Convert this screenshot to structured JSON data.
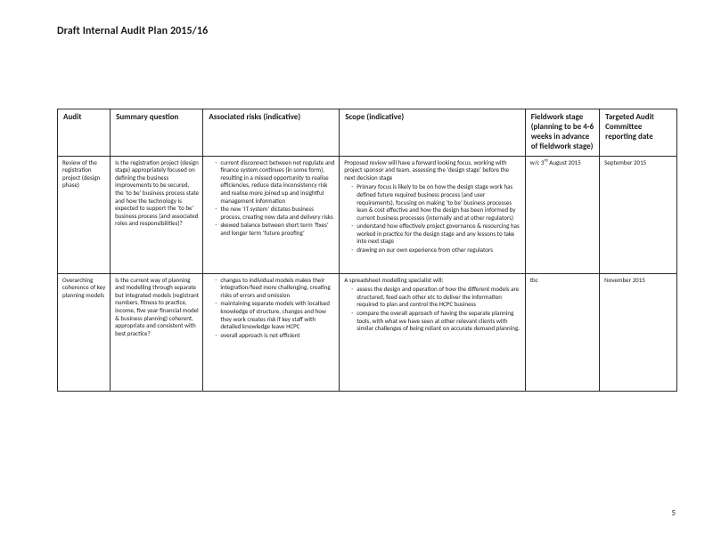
{
  "doc_title": "Draft Internal Audit Plan 2015/16",
  "page_number": "5",
  "columns": {
    "audit": "Audit",
    "summary": "Summary question",
    "risks": "Associated risks (indicative)",
    "scope": "Scope (indicative)",
    "fieldwork": "Fieldwork stage (planning to be 4-6 weeks in advance of fieldwork stage)",
    "target": "Targeted Audit Committee reporting date"
  },
  "rows": [
    {
      "audit": "Review of the registration project  (design phase)",
      "summary": "Is the registration project (design stage) appropriately focused on defining the business improvements to be secured, the ‘to be’ business process state and how the technology is expected to support the ‘to be’ business process (and associated roles and responsibilities)?",
      "risks": [
        "current disconnect between net regulate and finance system continues (in some form), resulting in a missed opportunity to realise efficiencies, reduce data inconsistency risk and realise more joined up and insightful management information",
        "the new ‘IT system’ dictates business process, creating new data and delivery risks",
        "skewed balance between short term ‘fixes’ and longer term ‘future proofing’"
      ],
      "scope_lead": "Proposed review will have a forward looking focus, working with project sponsor and team, assessing the ‘design stage’ before the next decision stage",
      "scope_items": [
        "Primary focus is likely to be on how the design stage work has defined future required business process (and user requirements), focusing on making ‘to be’ business processes lean & cost effective and how the design has been informed by current business processes (internally and at other regulators)",
        "understand how effectively project governance & resourcing has worked in practice for the design stage and any lessons to take into next stage",
        "drawing on our own experience from other regulators"
      ],
      "fieldwork_pre": "w/c 3",
      "fieldwork_sup": "rd",
      "fieldwork_post": " August 2015",
      "target": "September 2015"
    },
    {
      "audit": "Overarching coherence of key planning models",
      "summary": "Is the current way of planning and modelling through separate but integrated models (registrant numbers, fitness to practice, income, five year financial model & business planning) coherent, appropriate and consistent with best practice?",
      "risks": [
        "changes to individual models makes their integration/feed more challenging, creating risks of errors and omission",
        "maintaining separate models with localised knowledge of structure, changes and how they work creates risk if key staff with detailed knowledge leave HCPC",
        "overall approach is not efficient"
      ],
      "scope_lead": "A spreadsheet modelling specialist will:",
      "scope_items": [
        "assess the design and operation of how the different models are structured, feed each other etc  to deliver the information required to plan and control the HCPC business",
        "compare the overall approach of having the separate planning tools, with what we have seen at other relevant clients with similar challenges of being reliant on accurate demand planning."
      ],
      "fieldwork_pre": "tbc",
      "fieldwork_sup": "",
      "fieldwork_post": "",
      "target": "November 2015"
    }
  ]
}
